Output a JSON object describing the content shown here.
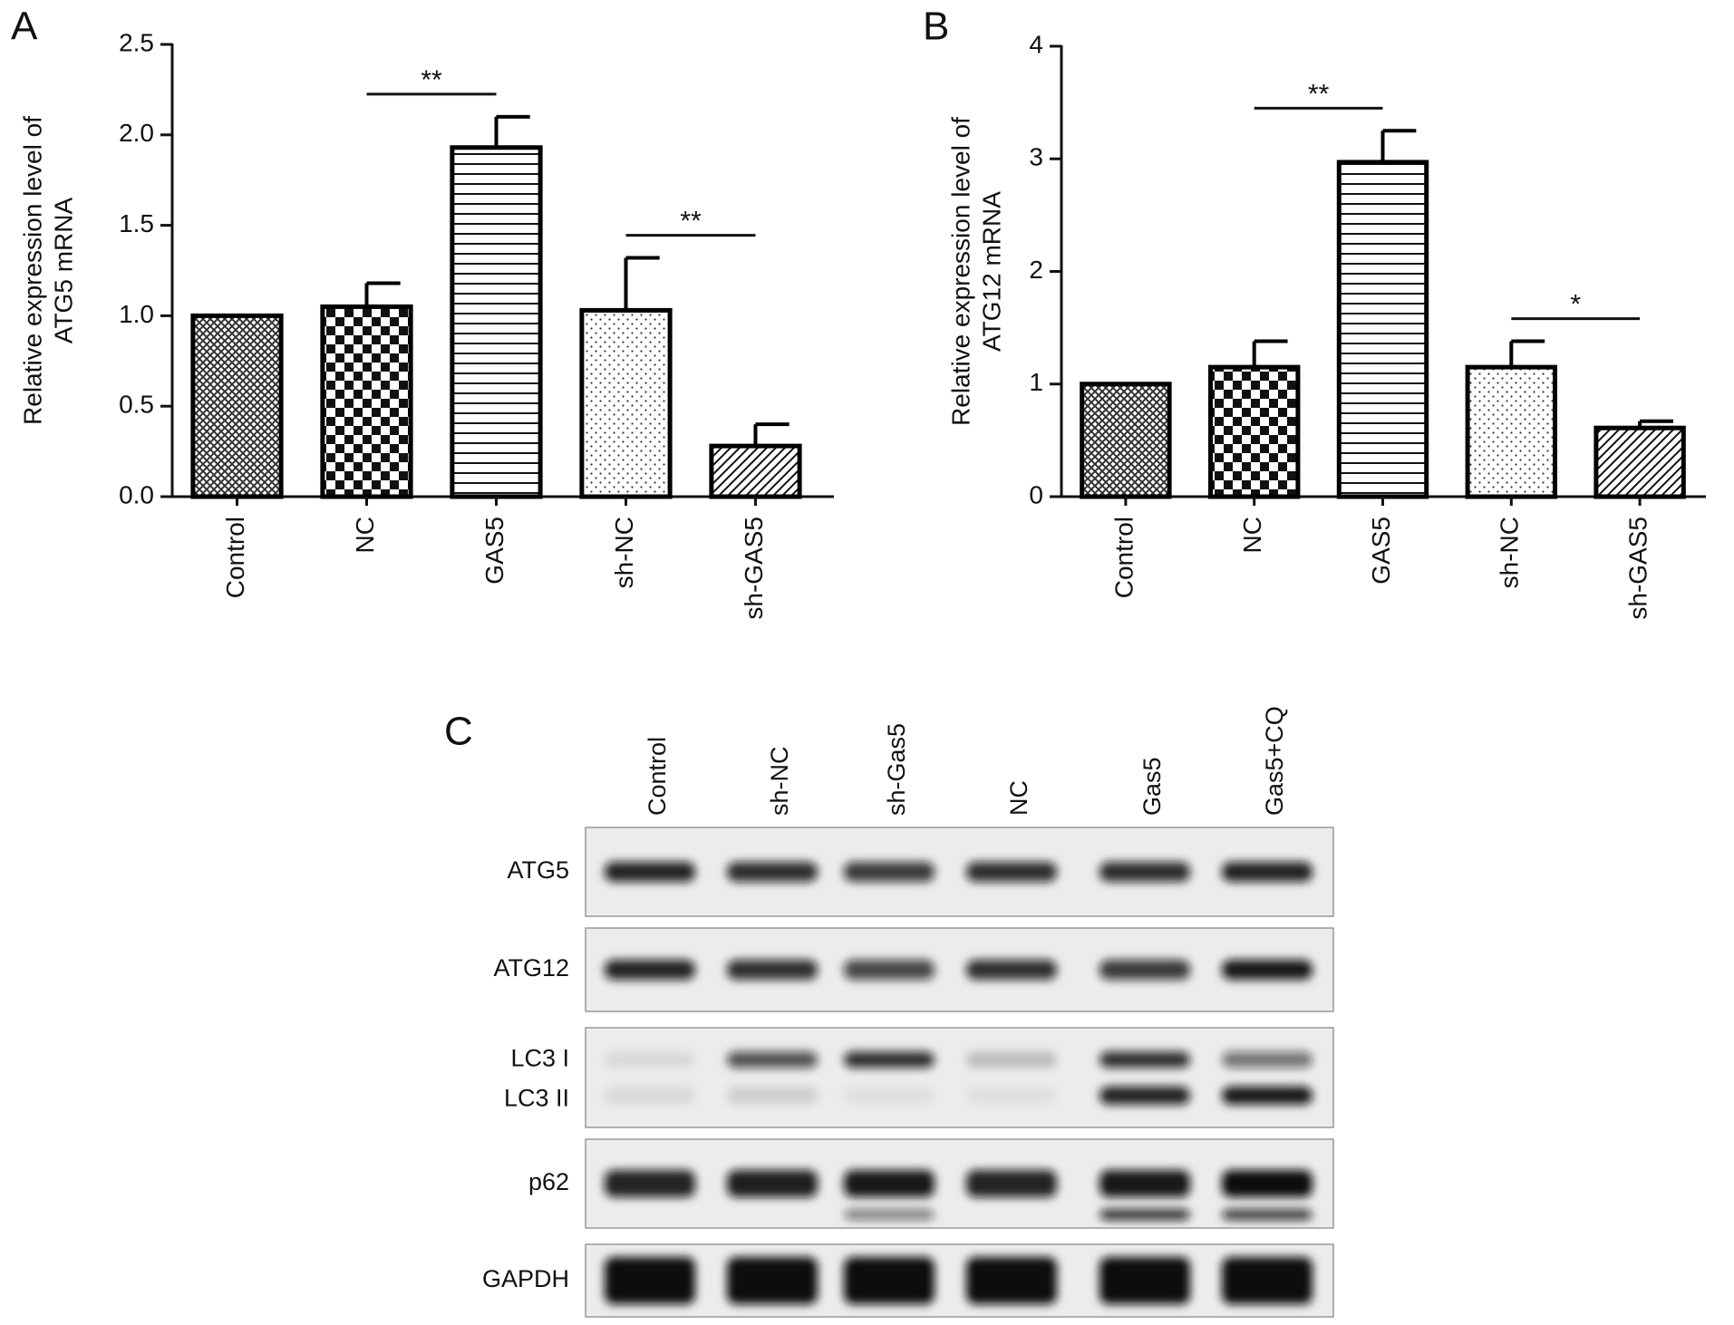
{
  "chart_data": [
    {
      "type": "bar",
      "label": "A",
      "ylabel": [
        "Relative expression level of",
        "ATG5 mRNA"
      ],
      "categories": [
        "Control",
        "NC",
        "GAS5",
        "sh-NC",
        "sh-GAS5"
      ],
      "values": [
        1.0,
        1.05,
        1.93,
        1.03,
        0.28
      ],
      "errors": [
        0,
        0.13,
        0.17,
        0.29,
        0.12
      ],
      "patterns": [
        "crosshatch",
        "checker",
        "hlines",
        "dots",
        "diagonal"
      ],
      "color": "#000000",
      "ylim": [
        0,
        2.5
      ],
      "yticks": [
        {
          "value": 0,
          "label": "0.0"
        },
        0.5,
        {
          "value": 1,
          "label": "1.0"
        },
        1.5,
        {
          "value": 2,
          "label": "2.0"
        },
        2.5
      ],
      "annotations": [
        {
          "text": "**",
          "between": [
            "NC",
            "GAS5"
          ]
        },
        {
          "text": "**",
          "between": [
            "sh-NC",
            "sh-GAS5"
          ]
        }
      ]
    },
    {
      "type": "bar",
      "label": "B",
      "ylabel": [
        "Relative expression level of",
        "ATG12 mRNA"
      ],
      "categories": [
        "Control",
        "NC",
        "GAS5",
        "sh-NC",
        "sh-GAS5"
      ],
      "values": [
        1.0,
        1.15,
        2.97,
        1.15,
        0.61
      ],
      "errors": [
        0,
        0.23,
        0.28,
        0.23,
        0.06
      ],
      "patterns": [
        "crosshatch",
        "checker",
        "hlines",
        "dots",
        "diagonal"
      ],
      "color": "#000000",
      "ylim": [
        0,
        4
      ],
      "yticks": [
        0,
        1,
        2,
        3,
        4
      ],
      "annotations": [
        {
          "text": "**",
          "between": [
            "NC",
            "GAS5"
          ]
        },
        {
          "text": "*",
          "between": [
            "sh-NC",
            "sh-GAS5"
          ]
        }
      ]
    }
  ],
  "blot": {
    "label": "C",
    "lanes": [
      "Control",
      "sh-NC",
      "sh-Gas5",
      "NC",
      "Gas5",
      "Gas5+CQ"
    ],
    "rows": [
      [
        "ATG5"
      ],
      [
        "ATG12"
      ],
      [
        "LC3 I",
        "LC3 II"
      ],
      [
        "p62"
      ],
      [
        "GAPDH"
      ]
    ]
  }
}
